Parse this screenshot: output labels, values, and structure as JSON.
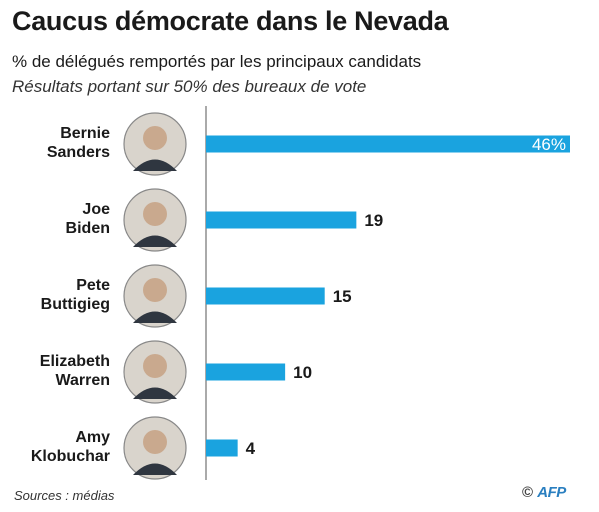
{
  "header": {
    "title": "Caucus démocrate dans le Nevada",
    "subtitle": "% de délégués remportés par les principaux candidats",
    "subtitle2": "Résultats portant sur 50% des bureaux de vote"
  },
  "footer": {
    "source": "Sources : médias",
    "copyright": "©",
    "brand": "AFP"
  },
  "colors": {
    "bar": "#1aa3df",
    "axis": "#555555"
  },
  "chart_data": {
    "type": "bar",
    "orientation": "horizontal",
    "title": "Caucus démocrate dans le Nevada",
    "subtitle": "% de délégués remportés par les principaux candidats",
    "categories": [
      [
        "Bernie",
        "Sanders"
      ],
      [
        "Joe",
        "Biden"
      ],
      [
        "Pete",
        "Buttigieg"
      ],
      [
        "Elizabeth",
        "Warren"
      ],
      [
        "Amy",
        "Klobuchar"
      ]
    ],
    "values": [
      46,
      19,
      15,
      10,
      4
    ],
    "value_labels": [
      "46%",
      "19",
      "15",
      "10",
      "4"
    ],
    "xlim": [
      0,
      46
    ],
    "grid": false,
    "legend": "none"
  }
}
